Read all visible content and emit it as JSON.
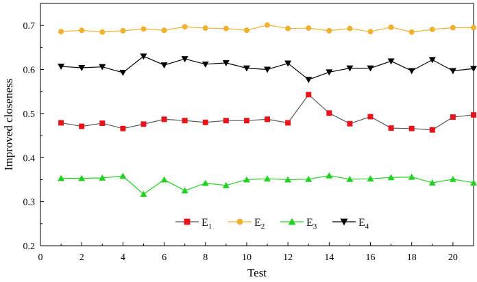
{
  "chart_data": {
    "type": "line",
    "title": "",
    "xlabel": "Test",
    "ylabel": "Improved closeness",
    "xlim": [
      0,
      21
    ],
    "ylim": [
      0.2,
      0.75
    ],
    "xticks": [
      0,
      2,
      4,
      6,
      8,
      10,
      12,
      14,
      16,
      18,
      20
    ],
    "yticks": [
      0.2,
      0.3,
      0.4,
      0.5,
      0.6,
      0.7
    ],
    "grid": false,
    "legend_position": "bottom-center",
    "x": [
      1,
      2,
      3,
      4,
      5,
      6,
      7,
      8,
      9,
      10,
      11,
      12,
      13,
      14,
      15,
      16,
      17,
      18,
      19,
      20,
      21
    ],
    "series": [
      {
        "name": "E",
        "sub": "1",
        "color": "#e8141c",
        "line_color": "#555555",
        "marker": "square",
        "values": [
          0.479,
          0.471,
          0.478,
          0.466,
          0.476,
          0.487,
          0.484,
          0.48,
          0.484,
          0.484,
          0.487,
          0.479,
          0.543,
          0.501,
          0.477,
          0.493,
          0.467,
          0.466,
          0.463,
          0.492,
          0.497
        ]
      },
      {
        "name": "E",
        "sub": "2",
        "color": "#f0b030",
        "line_color": "#f0b030",
        "marker": "circle",
        "values": [
          0.686,
          0.689,
          0.685,
          0.688,
          0.692,
          0.689,
          0.697,
          0.694,
          0.693,
          0.689,
          0.701,
          0.693,
          0.694,
          0.688,
          0.693,
          0.686,
          0.696,
          0.685,
          0.691,
          0.695,
          0.695
        ]
      },
      {
        "name": "E",
        "sub": "3",
        "color": "#22d022",
        "line_color": "#22d022",
        "marker": "triangle-up",
        "values": [
          0.353,
          0.353,
          0.354,
          0.358,
          0.317,
          0.35,
          0.325,
          0.342,
          0.337,
          0.35,
          0.352,
          0.35,
          0.351,
          0.359,
          0.351,
          0.352,
          0.355,
          0.356,
          0.343,
          0.351,
          0.343
        ]
      },
      {
        "name": "E",
        "sub": "4",
        "color": "#000000",
        "line_color": "#000000",
        "marker": "triangle-down",
        "values": [
          0.607,
          0.604,
          0.606,
          0.593,
          0.63,
          0.61,
          0.624,
          0.612,
          0.615,
          0.603,
          0.6,
          0.614,
          0.577,
          0.594,
          0.603,
          0.603,
          0.619,
          0.597,
          0.622,
          0.597,
          0.602
        ]
      }
    ]
  }
}
